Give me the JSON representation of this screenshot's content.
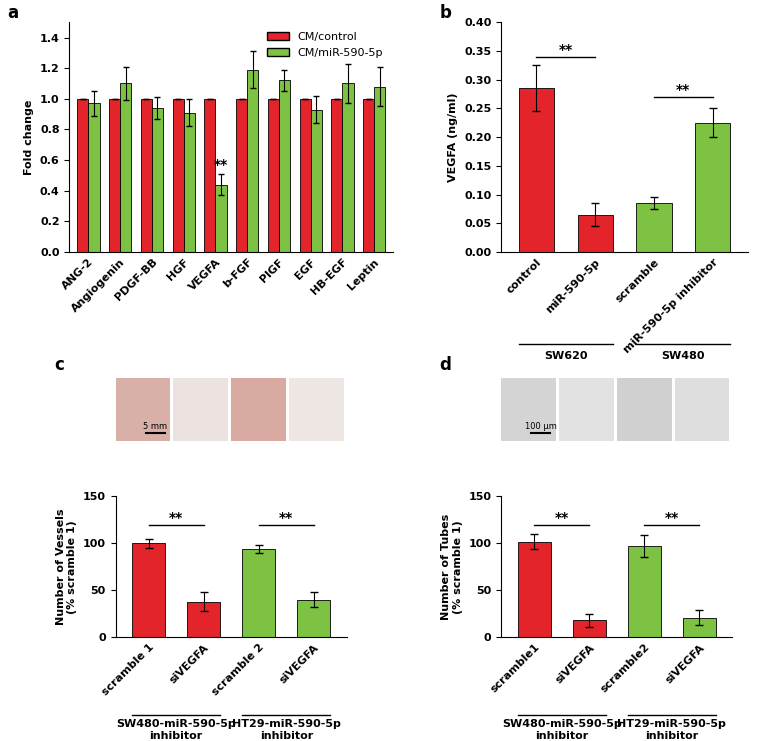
{
  "chart_data": [
    {
      "type": "bar",
      "title": "a",
      "y_label": "Fold change",
      "categories": [
        "ANG-2",
        "Angiogenin",
        "PDGF-BB",
        "HGF",
        "VEGFA",
        "b-FGF",
        "PlGF",
        "EGF",
        "HB-EGF",
        "Leptin"
      ],
      "series": [
        {
          "name": "CM/control",
          "color": "#e3242b",
          "values": [
            1.0,
            1.0,
            1.0,
            1.0,
            1.0,
            1.0,
            1.0,
            1.0,
            1.0,
            1.0
          ],
          "errors": [
            0,
            0,
            0,
            0,
            0,
            0,
            0,
            0,
            0,
            0
          ]
        },
        {
          "name": "CM/miR-590-5p",
          "color": "#7dc242",
          "values": [
            0.97,
            1.1,
            0.94,
            0.91,
            0.44,
            1.19,
            1.12,
            0.93,
            1.1,
            1.08
          ],
          "errors": [
            0.08,
            0.11,
            0.07,
            0.09,
            0.07,
            0.12,
            0.07,
            0.09,
            0.13,
            0.13
          ]
        }
      ],
      "ylim": [
        0,
        1.5
      ],
      "yticks": [
        0.0,
        0.2,
        0.4,
        0.6,
        0.8,
        1.0,
        1.2,
        1.4
      ],
      "legend": "upper right",
      "annotations": [
        {
          "text": "**",
          "at": 4,
          "y": 0.52
        }
      ]
    },
    {
      "type": "bar",
      "title": "b",
      "y_label": "VEGFA (ng/ml)",
      "categories": [
        "control",
        "miR-590-5p",
        "scramble",
        "miR-590-5p inhibitor"
      ],
      "values": [
        0.285,
        0.065,
        0.085,
        0.225
      ],
      "errors": [
        0.04,
        0.02,
        0.01,
        0.025
      ],
      "colors": [
        "#e3242b",
        "#e3242b",
        "#7dc242",
        "#7dc242"
      ],
      "ylim": [
        0,
        0.4
      ],
      "yticks": [
        {
          "value": 0,
          "label": "0.00"
        },
        {
          "value": 0.05,
          "label": "0.05"
        },
        {
          "value": 0.1,
          "label": "0.10"
        },
        {
          "value": 0.15,
          "label": "0.15"
        },
        {
          "value": 0.2,
          "label": "0.20"
        },
        {
          "value": 0.25,
          "label": "0.25"
        },
        {
          "value": 0.3,
          "label": "0.30"
        },
        {
          "value": 0.35,
          "label": "0.35"
        },
        {
          "value": 0.4,
          "label": "0.40"
        }
      ],
      "groups": [
        {
          "label": "SW620",
          "span": [
            0,
            1
          ]
        },
        {
          "label": "SW480",
          "span": [
            2,
            3
          ]
        }
      ],
      "annotations": [
        {
          "text": "**",
          "between": [
            0,
            1
          ],
          "y": 0.34
        },
        {
          "text": "**",
          "between": [
            2,
            3
          ],
          "y": 0.27
        }
      ]
    },
    {
      "type": "bar",
      "title": "c",
      "y_label": "Number of Vessels\n(% scramble 1)",
      "scale_label": "5 mm",
      "categories": [
        "scramble 1",
        "siVEGFA",
        "scramble 2",
        "siVEGFA"
      ],
      "values": [
        100,
        38,
        94,
        40
      ],
      "errors": [
        5,
        10,
        4,
        8
      ],
      "colors": [
        "#e3242b",
        "#e3242b",
        "#7dc242",
        "#7dc242"
      ],
      "ylim": [
        0,
        150
      ],
      "yticks": [
        0,
        50,
        100,
        150
      ],
      "groups": [
        {
          "label": "SW480-miR-590-5p\ninhibitor",
          "span": [
            0,
            1
          ]
        },
        {
          "label": "HT29-miR-590-5p\ninhibitor",
          "span": [
            2,
            3
          ]
        }
      ],
      "annotations": [
        {
          "text": "**",
          "between": [
            0,
            1
          ],
          "y": 120
        },
        {
          "text": "**",
          "between": [
            2,
            3
          ],
          "y": 120
        }
      ]
    },
    {
      "type": "bar",
      "title": "d",
      "y_label": "Number of Tubes\n(% scramble 1)",
      "scale_label": "100 μm",
      "categories": [
        "scramble1",
        "siVEGFA",
        "scramble2",
        "siVEGFA"
      ],
      "values": [
        102,
        18,
        97,
        21
      ],
      "errors": [
        8,
        7,
        12,
        8
      ],
      "colors": [
        "#e3242b",
        "#e3242b",
        "#7dc242",
        "#7dc242"
      ],
      "ylim": [
        0,
        150
      ],
      "yticks": [
        0,
        50,
        100,
        150
      ],
      "groups": [
        {
          "label": "SW480-miR-590-5p\ninhibitor",
          "span": [
            0,
            1
          ]
        },
        {
          "label": "HT29-miR-590-5p\ninhibitor",
          "span": [
            2,
            3
          ]
        }
      ],
      "annotations": [
        {
          "text": "**",
          "between": [
            0,
            1
          ],
          "y": 120
        },
        {
          "text": "**",
          "between": [
            2,
            3
          ],
          "y": 120
        }
      ]
    }
  ]
}
